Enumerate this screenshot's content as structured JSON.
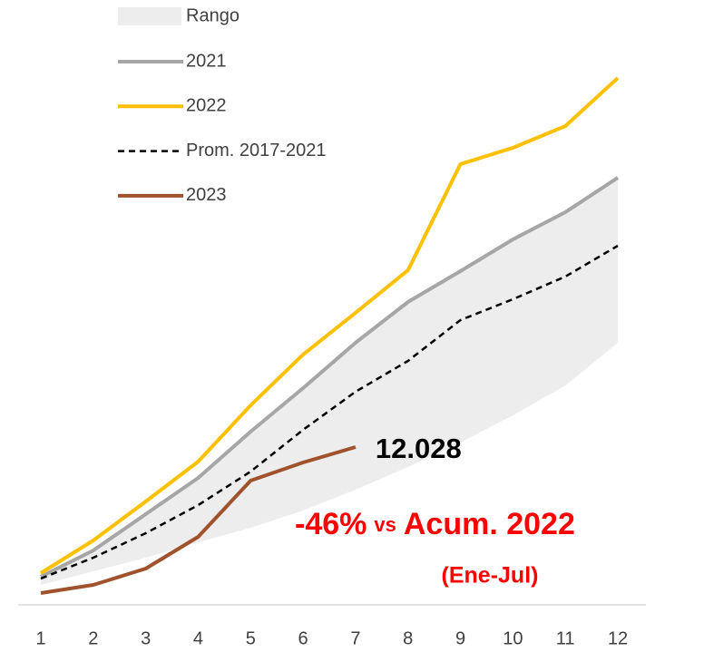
{
  "chart_data": {
    "type": "line",
    "categories": [
      "1",
      "2",
      "3",
      "4",
      "5",
      "6",
      "7",
      "8",
      "9",
      "10",
      "11",
      "12"
    ],
    "ylim": [
      0,
      41000
    ],
    "range": {
      "name": "Rango",
      "color": "#ededed",
      "low": [
        1521,
        2558,
        3595,
        4770,
        5876,
        7190,
        8780,
        10508,
        12374,
        14448,
        16729,
        19979
      ],
      "high": [
        2143,
        4148,
        6913,
        9678,
        13204,
        16522,
        19979,
        23089,
        25440,
        27859,
        29933,
        32560
      ]
    },
    "series": [
      {
        "name": "2021",
        "color": "#a6a6a6",
        "style": "solid",
        "values": [
          2143,
          4148,
          6913,
          9678,
          13204,
          16522,
          19979,
          23089,
          25440,
          27859,
          29933,
          32560
        ]
      },
      {
        "name": "2022",
        "color": "#ffc000",
        "style": "solid",
        "values": [
          2420,
          4908,
          7881,
          10923,
          15209,
          19080,
          22260,
          25509,
          33597,
          34842,
          36501,
          40165
        ]
      },
      {
        "name": "Prom. 2017-2021",
        "color": "#000000",
        "style": "dashed",
        "values": [
          2005,
          3595,
          5461,
          7604,
          10162,
          13342,
          16246,
          18596,
          21707,
          23297,
          25025,
          27375
        ]
      },
      {
        "name": "2023",
        "color": "#a0522d",
        "style": "solid",
        "values": [
          899,
          1521,
          2765,
          5185,
          9471,
          10853,
          12028,
          null,
          null,
          null,
          null,
          null
        ],
        "value_labels": [
          null,
          null,
          null,
          null,
          null,
          null,
          "12.028",
          null,
          null,
          null,
          null,
          null
        ]
      }
    ],
    "annotation": {
      "change": "-46%",
      "vs": "vs",
      "reference": "Acum. 2022",
      "period": "(Ene-Jul)",
      "color": "#ff0000"
    }
  }
}
